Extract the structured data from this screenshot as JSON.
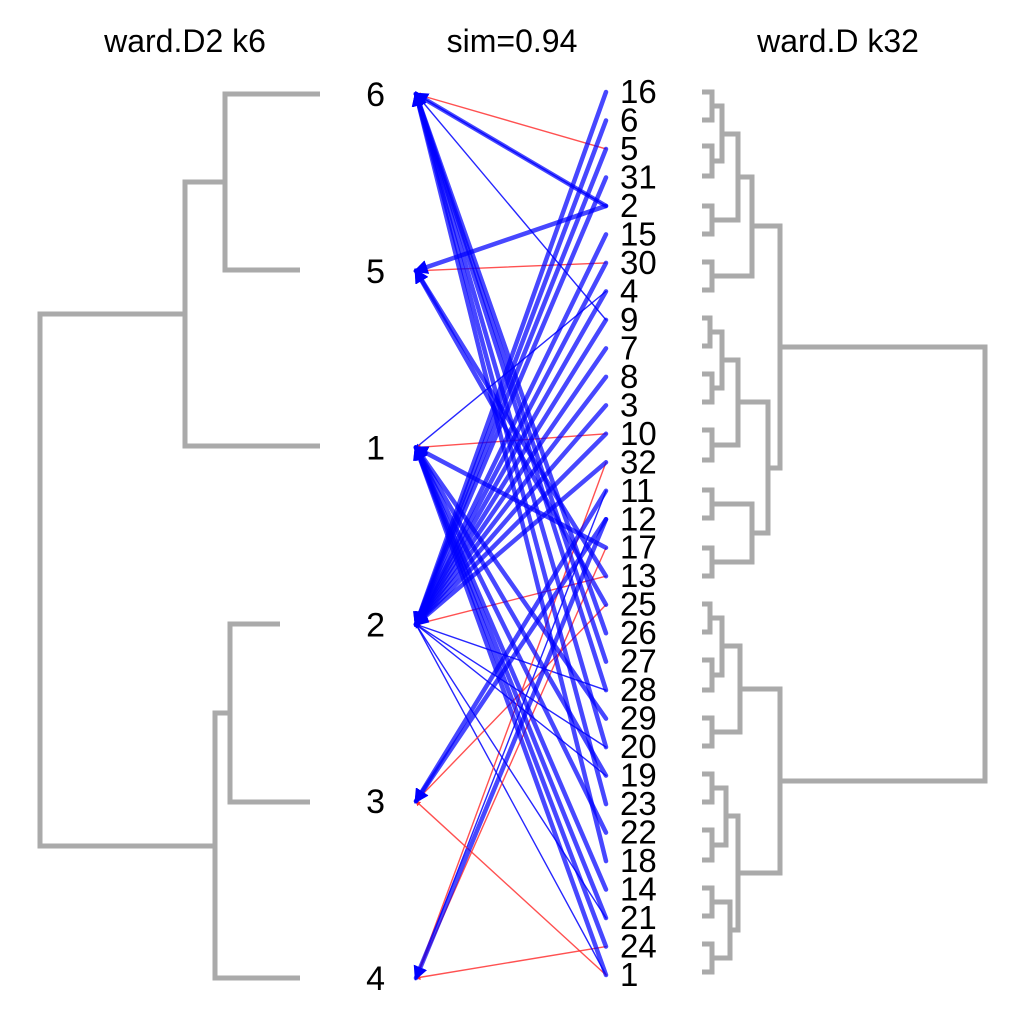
{
  "titles": {
    "left": "ward.D2 k6",
    "center": "sim=0.94",
    "right": "ward.D k32"
  },
  "colors": {
    "dendrogram": "#aaaaaa",
    "arrow_blue": "#0000ff",
    "arrow_red": "#ff3333"
  },
  "left_clusters": [
    "6",
    "5",
    "1",
    "2",
    "3",
    "4"
  ],
  "right_clusters": [
    "16",
    "6",
    "5",
    "31",
    "2",
    "15",
    "30",
    "4",
    "9",
    "7",
    "8",
    "3",
    "10",
    "32",
    "11",
    "12",
    "17",
    "13",
    "25",
    "26",
    "27",
    "28",
    "29",
    "20",
    "19",
    "23",
    "22",
    "18",
    "14",
    "21",
    "24",
    "1"
  ],
  "links": {
    "major": [
      {
        "from": "16",
        "to": "2"
      },
      {
        "from": "6",
        "to": "2"
      },
      {
        "from": "5",
        "to": "2"
      },
      {
        "from": "31",
        "to": "2"
      },
      {
        "from": "15",
        "to": "2"
      },
      {
        "from": "30",
        "to": "2"
      },
      {
        "from": "4",
        "to": "2"
      },
      {
        "from": "9",
        "to": "2"
      },
      {
        "from": "7",
        "to": "2"
      },
      {
        "from": "8",
        "to": "2"
      },
      {
        "from": "3",
        "to": "2"
      },
      {
        "from": "10",
        "to": "2"
      },
      {
        "from": "32",
        "to": "2"
      },
      {
        "from": "11",
        "to": "3"
      },
      {
        "from": "12",
        "to": "3"
      },
      {
        "from": "17",
        "to": "1"
      },
      {
        "from": "13",
        "to": "5"
      },
      {
        "from": "25",
        "to": "5"
      },
      {
        "from": "26",
        "to": "6"
      },
      {
        "from": "27",
        "to": "6"
      },
      {
        "from": "28",
        "to": "6"
      },
      {
        "from": "29",
        "to": "1"
      },
      {
        "from": "20",
        "to": "6"
      },
      {
        "from": "19",
        "to": "1"
      },
      {
        "from": "23",
        "to": "6"
      },
      {
        "from": "22",
        "to": "1"
      },
      {
        "from": "18",
        "to": "6"
      },
      {
        "from": "14",
        "to": "1"
      },
      {
        "from": "21",
        "to": "1"
      },
      {
        "from": "24",
        "to": "1"
      },
      {
        "from": "1",
        "to": "1"
      },
      {
        "from": "12",
        "to": "4"
      },
      {
        "from": "2",
        "to": "6"
      },
      {
        "from": "2",
        "to": "5"
      }
    ],
    "minor": [
      {
        "from": "5",
        "to": "6"
      },
      {
        "from": "2",
        "to": "6"
      },
      {
        "from": "30",
        "to": "5"
      },
      {
        "from": "4",
        "to": "1"
      },
      {
        "from": "13",
        "to": "2"
      },
      {
        "from": "28",
        "to": "2"
      },
      {
        "from": "24",
        "to": "4"
      },
      {
        "from": "1",
        "to": "2"
      },
      {
        "from": "17",
        "to": "4"
      },
      {
        "from": "11",
        "to": "4"
      },
      {
        "from": "1",
        "to": "3"
      },
      {
        "from": "19",
        "to": "2"
      },
      {
        "from": "32",
        "to": "4"
      },
      {
        "from": "20",
        "to": "2"
      },
      {
        "from": "10",
        "to": "1"
      },
      {
        "from": "9",
        "to": "6"
      },
      {
        "from": "25",
        "to": "3"
      },
      {
        "from": "21",
        "to": "2"
      }
    ]
  }
}
